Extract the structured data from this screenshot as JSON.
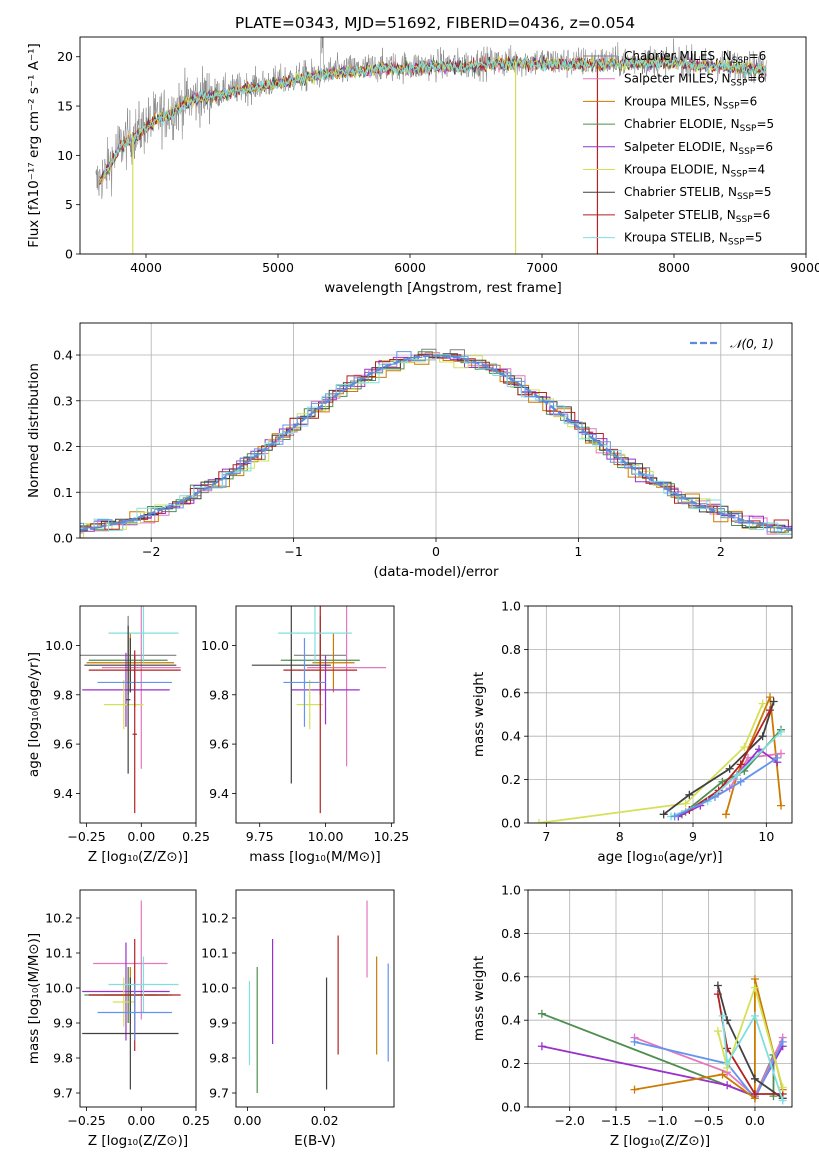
{
  "title": "PLATE=0343, MJD=51692, FIBERID=0436, z=0.054",
  "colors": {
    "chabrier_miles": "#7f7f7f",
    "salpeter_miles": "#e377c2",
    "kroupa_miles": "#cc7a00",
    "chabrier_elodie": "#4f8f4f",
    "salpeter_elodie": "#9932cc",
    "kroupa_elodie": "#d4e157",
    "chabrier_stelib": "#404040",
    "salpeter_stelib": "#b22222",
    "kroupa_stelib": "#80dfdf",
    "gauss": "#5b8bd9",
    "extra_blue": "#6495ed",
    "extra_orange": "#ff7f0e"
  },
  "chart_data": [
    {
      "id": "spectrum",
      "type": "line",
      "xlabel": "wavelength [Angstrom, rest frame]",
      "ylabel": "Flux [fλ10⁻¹⁷ erg cm⁻² s⁻¹ A⁻¹]",
      "xlim": [
        3500,
        9000
      ],
      "ylim": [
        0,
        22
      ],
      "xticks": [
        "4000",
        "5000",
        "6000",
        "7000",
        "8000",
        "9000"
      ],
      "yticks": [
        "0",
        "5",
        "10",
        "15",
        "20"
      ],
      "continuum": {
        "x": [
          3620,
          3700,
          3800,
          3900,
          4000,
          4100,
          4200,
          4300,
          4400,
          4500,
          4600,
          4800,
          5000,
          5200,
          5400,
          5600,
          5800,
          6000,
          6200,
          6400,
          6600,
          6800,
          7000,
          7200,
          7400,
          7600,
          7800,
          8000,
          8200,
          8400,
          8600,
          8700
        ],
        "y": [
          7.0,
          8.5,
          11.0,
          12.0,
          13.0,
          14.0,
          14.5,
          15.5,
          16.0,
          16.2,
          16.5,
          17.0,
          17.5,
          18.0,
          18.5,
          18.7,
          19.0,
          19.0,
          19.2,
          19.2,
          19.4,
          19.5,
          19.5,
          19.4,
          19.5,
          19.5,
          19.6,
          19.6,
          19.3,
          19.2,
          19.0,
          18.8
        ]
      },
      "legend": [
        {
          "label": "Chabrier MILES, N",
          "sub": "SSP",
          "tail": "=6",
          "color_key": "chabrier_miles"
        },
        {
          "label": "Salpeter MILES, N",
          "sub": "SSP",
          "tail": "=6",
          "color_key": "salpeter_miles"
        },
        {
          "label": "Kroupa MILES, N",
          "sub": "SSP",
          "tail": "=6",
          "color_key": "kroupa_miles"
        },
        {
          "label": "Chabrier ELODIE, N",
          "sub": "SSP",
          "tail": "=5",
          "color_key": "chabrier_elodie"
        },
        {
          "label": "Salpeter ELODIE, N",
          "sub": "SSP",
          "tail": "=6",
          "color_key": "salpeter_elodie"
        },
        {
          "label": "Kroupa ELODIE, N",
          "sub": "SSP",
          "tail": "=4",
          "color_key": "kroupa_elodie"
        },
        {
          "label": "Chabrier STELIB, N",
          "sub": "SSP",
          "tail": "=5",
          "color_key": "chabrier_stelib"
        },
        {
          "label": "Salpeter STELIB, N",
          "sub": "SSP",
          "tail": "=6",
          "color_key": "salpeter_stelib"
        },
        {
          "label": "Kroupa STELIB, N",
          "sub": "SSP",
          "tail": "=5",
          "color_key": "kroupa_stelib"
        }
      ],
      "model_drops": [
        {
          "x": 3900,
          "color_key": "kroupa_elodie"
        },
        {
          "x": 6800,
          "color_key": "kroupa_elodie"
        },
        {
          "x": 7420,
          "color_key": "salpeter_stelib"
        }
      ]
    },
    {
      "id": "residuals",
      "type": "step",
      "xlabel": "(data-model)/error",
      "ylabel": "Normed distribution",
      "xlim": [
        -2.5,
        2.5
      ],
      "ylim": [
        0,
        0.47
      ],
      "xticks": [
        "−2",
        "−1",
        "0",
        "1",
        "2"
      ],
      "yticks": [
        "0.0",
        "0.1",
        "0.2",
        "0.3",
        "0.4"
      ],
      "legend_label": "𝒩(0, 1)",
      "bin_width": 0.1,
      "series_colors": [
        "chabrier_miles",
        "salpeter_miles",
        "kroupa_miles",
        "chabrier_elodie",
        "salpeter_elodie",
        "kroupa_elodie",
        "chabrier_stelib",
        "salpeter_stelib",
        "kroupa_stelib",
        "extra_blue"
      ]
    },
    {
      "id": "age_vs_Z",
      "type": "errorbar",
      "xlabel": "Z [log₁₀(Z/Z⊙)]",
      "ylabel": "age  [log₁₀(age/yr)]",
      "xlim": [
        -0.28,
        0.25
      ],
      "ylim": [
        9.28,
        10.16
      ],
      "xticks": [
        "−0.25",
        "0.00",
        "0.25"
      ],
      "yticks": [
        "9.4",
        "9.6",
        "9.8",
        "10.0"
      ],
      "points": [
        {
          "c": "chabrier_miles",
          "x": -0.06,
          "xerr": 0.22,
          "y": 9.96,
          "yerr": 0.16
        },
        {
          "c": "salpeter_miles",
          "x": 0.0,
          "xerr": 0.18,
          "y": 9.91,
          "yerr": 0.41
        },
        {
          "c": "kroupa_miles",
          "x": -0.05,
          "xerr": 0.2,
          "y": 9.93,
          "yerr": 0.12
        },
        {
          "c": "chabrier_elodie",
          "x": -0.06,
          "xerr": 0.18,
          "y": 9.94,
          "yerr": 0.08
        },
        {
          "c": "salpeter_elodie",
          "x": -0.07,
          "xerr": 0.2,
          "y": 9.82,
          "yerr": 0.15
        },
        {
          "c": "kroupa_elodie",
          "x": -0.08,
          "xerr": 0.09,
          "y": 9.76,
          "yerr": 0.1
        },
        {
          "c": "chabrier_stelib",
          "x": -0.05,
          "xerr": 0.21,
          "y": 9.92,
          "yerr": 0.11
        },
        {
          "c": "salpeter_stelib",
          "x": -0.03,
          "xerr": 0.21,
          "y": 9.9,
          "yerr": 0.08
        },
        {
          "c": "kroupa_stelib",
          "x": 0.01,
          "xerr": 0.16,
          "y": 10.05,
          "yerr": 0.12
        },
        {
          "c": "extra_blue",
          "x": -0.03,
          "xerr": 0.17,
          "y": 9.85,
          "yerr": 0.1
        },
        {
          "c": "chabrier_stelib",
          "x": -0.06,
          "xerr": 0.01,
          "y": 9.78,
          "yerr": 0.3
        },
        {
          "c": "salpeter_stelib",
          "x": -0.03,
          "xerr": 0.01,
          "y": 9.64,
          "yerr": 0.32
        }
      ]
    },
    {
      "id": "age_vs_mass",
      "type": "errorbar",
      "xlabel": "mass [log₁₀(M/M⊙)]",
      "ylabel": "",
      "xlim": [
        9.66,
        10.26
      ],
      "ylim": [
        9.28,
        10.16
      ],
      "xticks": [
        "9.75",
        "10.00",
        "10.25"
      ],
      "yticks": [
        "9.4",
        "9.6",
        "9.8",
        "10.0"
      ],
      "points": [
        {
          "c": "chabrier_miles",
          "x": 9.98,
          "xerr": 0.1,
          "y": 9.96,
          "yerr": 0.16
        },
        {
          "c": "salpeter_miles",
          "x": 10.08,
          "xerr": 0.15,
          "y": 9.91,
          "yerr": 0.4
        },
        {
          "c": "kroupa_miles",
          "x": 10.03,
          "xerr": 0.08,
          "y": 9.93,
          "yerr": 0.12
        },
        {
          "c": "chabrier_elodie",
          "x": 9.98,
          "xerr": 0.15,
          "y": 9.94,
          "yerr": 0.08
        },
        {
          "c": "salpeter_elodie",
          "x": 10.0,
          "xerr": 0.13,
          "y": 9.82,
          "yerr": 0.14
        },
        {
          "c": "kroupa_elodie",
          "x": 9.94,
          "xerr": 0.05,
          "y": 9.76,
          "yerr": 0.1
        },
        {
          "c": "chabrier_stelib",
          "x": 9.87,
          "xerr": 0.15,
          "y": 9.92,
          "yerr": 0.48
        },
        {
          "c": "salpeter_stelib",
          "x": 9.98,
          "xerr": 0.14,
          "y": 9.9,
          "yerr": 0.58
        },
        {
          "c": "kroupa_stelib",
          "x": 9.96,
          "xerr": 0.14,
          "y": 10.05,
          "yerr": 0.12
        },
        {
          "c": "extra_blue",
          "x": 9.92,
          "xerr": 0.08,
          "y": 9.85,
          "yerr": 0.18
        }
      ]
    },
    {
      "id": "mass_weight_vs_age",
      "type": "line",
      "xlabel": "age  [log₁₀(age/yr)]",
      "ylabel": "mass weight",
      "xlim": [
        6.75,
        10.35
      ],
      "ylim": [
        0,
        1
      ],
      "xticks": [
        "7",
        "8",
        "9",
        "10"
      ],
      "yticks": [
        "0.0",
        "0.2",
        "0.4",
        "0.6",
        "0.8",
        "1.0"
      ],
      "series": [
        {
          "c": "kroupa_elodie",
          "x": [
            6.9,
            8.9,
            9.7,
            9.95
          ],
          "y": [
            0.0,
            0.09,
            0.35,
            0.55
          ]
        },
        {
          "c": "kroupa_miles",
          "x": [
            9.45,
            9.6,
            10.05,
            10.2
          ],
          "y": [
            0.04,
            0.22,
            0.58,
            0.08
          ]
        },
        {
          "c": "salpeter_miles",
          "x": [
            8.9,
            9.5,
            9.75,
            10.2
          ],
          "y": [
            0.05,
            0.16,
            0.3,
            0.32
          ]
        },
        {
          "c": "chabrier_elodie",
          "x": [
            8.85,
            9.4,
            9.7,
            10.2
          ],
          "y": [
            0.04,
            0.19,
            0.24,
            0.43
          ]
        },
        {
          "c": "salpeter_elodie",
          "x": [
            8.8,
            9.1,
            9.6,
            9.9,
            10.15
          ],
          "y": [
            0.03,
            0.08,
            0.22,
            0.34,
            0.28
          ]
        },
        {
          "c": "chabrier_stelib",
          "x": [
            8.6,
            8.95,
            9.5,
            9.95,
            10.1
          ],
          "y": [
            0.04,
            0.13,
            0.25,
            0.4,
            0.56
          ]
        },
        {
          "c": "salpeter_stelib",
          "x": [
            8.95,
            9.35,
            9.65,
            10.05
          ],
          "y": [
            0.06,
            0.15,
            0.27,
            0.52
          ]
        },
        {
          "c": "kroupa_stelib",
          "x": [
            8.7,
            9.2,
            9.6,
            10.2
          ],
          "y": [
            0.03,
            0.1,
            0.22,
            0.42
          ]
        },
        {
          "c": "extra_blue",
          "x": [
            8.75,
            9.3,
            9.65,
            10.15
          ],
          "y": [
            0.03,
            0.12,
            0.19,
            0.3
          ]
        }
      ]
    },
    {
      "id": "mass_vs_Z",
      "type": "errorbar",
      "xlabel": "Z [log₁₀(Z/Z⊙)]",
      "ylabel": "mass [log₁₀(M/M⊙)]",
      "xlim": [
        -0.28,
        0.25
      ],
      "ylim": [
        9.66,
        10.28
      ],
      "xticks": [
        "−0.25",
        "0.00",
        "0.25"
      ],
      "yticks": [
        "9.7",
        "9.8",
        "9.9",
        "10.0",
        "10.1",
        "10.2"
      ],
      "points": [
        {
          "c": "chabrier_miles",
          "x": -0.06,
          "xerr": 0.18,
          "y": 9.98,
          "yerr": 0.08
        },
        {
          "c": "salpeter_miles",
          "x": 0.0,
          "xerr": 0.0,
          "y": 10.08,
          "yerr": 0.17
        },
        {
          "c": "salpeter_miles",
          "x": -0.05,
          "xerr": 0.17,
          "y": 10.07,
          "yerr": 0.0
        },
        {
          "c": "kroupa_miles",
          "x": -0.05,
          "xerr": 0.12,
          "y": 9.98,
          "yerr": 0.08
        },
        {
          "c": "chabrier_elodie",
          "x": -0.06,
          "xerr": 0.2,
          "y": 9.98,
          "yerr": 0.08
        },
        {
          "c": "salpeter_elodie",
          "x": -0.07,
          "xerr": 0.2,
          "y": 9.99,
          "yerr": 0.14
        },
        {
          "c": "kroupa_elodie",
          "x": -0.08,
          "xerr": 0.05,
          "y": 9.96,
          "yerr": 0.07
        },
        {
          "c": "chabrier_stelib",
          "x": -0.05,
          "xerr": 0.22,
          "y": 9.87,
          "yerr": 0.16
        },
        {
          "c": "salpeter_stelib",
          "x": -0.03,
          "xerr": 0.21,
          "y": 9.98,
          "yerr": 0.16
        },
        {
          "c": "kroupa_stelib",
          "x": 0.01,
          "xerr": 0.16,
          "y": 10.01,
          "yerr": 0.08
        },
        {
          "c": "extra_blue",
          "x": -0.03,
          "xerr": 0.17,
          "y": 9.93,
          "yerr": 0.08
        }
      ]
    },
    {
      "id": "mass_vs_ebv",
      "type": "errorbar",
      "xlabel": "E(B-V)",
      "ylabel": "",
      "xlim": [
        -0.003,
        0.038
      ],
      "ylim": [
        9.66,
        10.28
      ],
      "xticks": [
        "0.00",
        "0.02"
      ],
      "yticks": [
        "9.7",
        "9.8",
        "9.9",
        "10.0",
        "10.1",
        "10.2"
      ],
      "points": [
        {
          "c": "kroupa_stelib",
          "x": 0.0005,
          "xerr": 0,
          "y": 9.9,
          "yerr": 0.12
        },
        {
          "c": "chabrier_elodie",
          "x": 0.0025,
          "xerr": 0,
          "y": 9.88,
          "yerr": 0.18
        },
        {
          "c": "salpeter_elodie",
          "x": 0.0065,
          "xerr": 0,
          "y": 9.99,
          "yerr": 0.15
        },
        {
          "c": "chabrier_stelib",
          "x": 0.0205,
          "xerr": 0,
          "y": 9.87,
          "yerr": 0.16
        },
        {
          "c": "salpeter_stelib",
          "x": 0.0235,
          "xerr": 0,
          "y": 9.98,
          "yerr": 0.17
        },
        {
          "c": "salpeter_miles",
          "x": 0.031,
          "xerr": 0,
          "y": 10.14,
          "yerr": 0.11
        },
        {
          "c": "kroupa_miles",
          "x": 0.0335,
          "xerr": 0,
          "y": 9.95,
          "yerr": 0.14
        },
        {
          "c": "extra_blue",
          "x": 0.0365,
          "xerr": 0,
          "y": 9.93,
          "yerr": 0.14
        }
      ]
    },
    {
      "id": "mass_weight_vs_Z",
      "type": "line",
      "xlabel": "Z [log₁₀(Z/Z⊙)]",
      "ylabel": "mass weight",
      "xlim": [
        -2.45,
        0.4
      ],
      "ylim": [
        0,
        1
      ],
      "xticks": [
        "−2.0",
        "−1.5",
        "−1.0",
        "−0.5",
        "0.0"
      ],
      "yticks": [
        "0.0",
        "0.2",
        "0.4",
        "0.6",
        "0.8",
        "1.0"
      ],
      "series": [
        {
          "c": "chabrier_elodie",
          "x": [
            -2.3,
            0.0,
            0.2,
            0.2
          ],
          "y": [
            0.43,
            0.05,
            0.24,
            0.05
          ]
        },
        {
          "c": "salpeter_elodie",
          "x": [
            -2.3,
            -0.3,
            0.0,
            0.3
          ],
          "y": [
            0.28,
            0.1,
            0.05,
            0.28
          ]
        },
        {
          "c": "salpeter_miles",
          "x": [
            -1.3,
            -0.3,
            0.0,
            0.3
          ],
          "y": [
            0.32,
            0.16,
            0.05,
            0.32
          ]
        },
        {
          "c": "extra_blue",
          "x": [
            -1.3,
            -0.3,
            0.0,
            0.3
          ],
          "y": [
            0.3,
            0.2,
            0.04,
            0.3
          ]
        },
        {
          "c": "kroupa_miles",
          "x": [
            -1.3,
            -0.35,
            0.0,
            0.0,
            0.3
          ],
          "y": [
            0.08,
            0.15,
            0.04,
            0.59,
            0.08
          ]
        },
        {
          "c": "chabrier_stelib",
          "x": [
            -0.4,
            -0.3,
            0.0,
            0.3
          ],
          "y": [
            0.56,
            0.4,
            0.13,
            0.04
          ]
        },
        {
          "c": "salpeter_stelib",
          "x": [
            -0.4,
            -0.3,
            0.0,
            0.3
          ],
          "y": [
            0.52,
            0.27,
            0.06,
            0.06
          ]
        },
        {
          "c": "kroupa_elodie",
          "x": [
            -0.4,
            -0.3,
            0.0,
            0.3
          ],
          "y": [
            0.35,
            0.18,
            0.55,
            0.09
          ]
        },
        {
          "c": "kroupa_stelib",
          "x": [
            -0.35,
            -0.3,
            0.0,
            0.3
          ],
          "y": [
            0.42,
            0.2,
            0.42,
            0.03
          ]
        }
      ]
    }
  ]
}
